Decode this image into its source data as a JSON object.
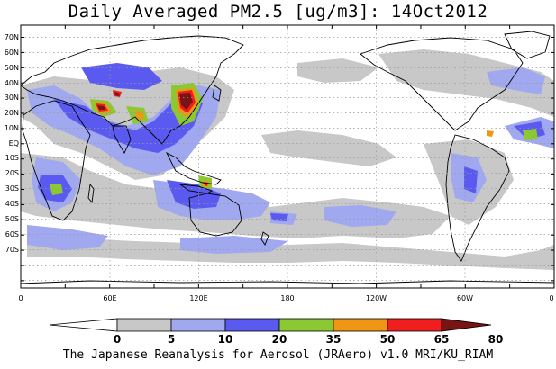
{
  "map": {
    "title": "Daily Averaged PM2.5 [ug/m3]: 14Oct2012",
    "footer": "The Japanese Reanalysis for Aerosol (JRAero) v1.0 MRI/KU_RIAM",
    "lat_labels": [
      "70N",
      "60N",
      "50N",
      "40N",
      "30N",
      "20N",
      "10N",
      "EQ",
      "10S",
      "20S",
      "30S",
      "40S",
      "50S",
      "60S",
      "70S"
    ],
    "lon_labels": [
      "0",
      "60E",
      "120E",
      "180",
      "120W",
      "60W",
      "0"
    ],
    "colorbar": {
      "levels": [
        "0",
        "5",
        "10",
        "20",
        "35",
        "50",
        "65",
        "80"
      ],
      "colors": [
        "#ffffff",
        "#c8c8c8",
        "#a0a8f0",
        "#5a5af0",
        "#8cc832",
        "#f09614",
        "#f01e1e",
        "#781414"
      ]
    }
  }
}
